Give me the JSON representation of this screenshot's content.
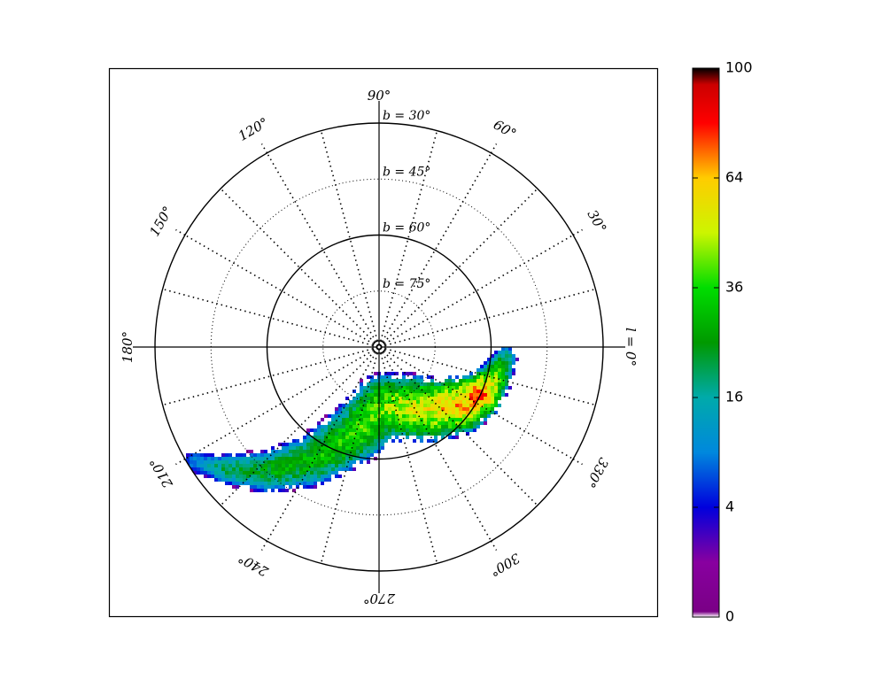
{
  "chart_data": {
    "type": "heatmap",
    "projection": "polar (galactic, north-pole centred)",
    "title": "",
    "longitude_ticks": [
      "90°",
      "60°",
      "30°",
      "l = 0°",
      "330°",
      "300°",
      "270°",
      "240°",
      "210°",
      "180°",
      "150°",
      "120°"
    ],
    "longitude_values": [
      90,
      60,
      30,
      0,
      330,
      300,
      270,
      240,
      210,
      180,
      150,
      120
    ],
    "latitude_labels": [
      "b = 30°",
      "b = 45°",
      "b = 60°",
      "b = 75°"
    ],
    "latitude_values": [
      30,
      45,
      60,
      75
    ],
    "latitude_solid": [
      30,
      60
    ],
    "latitude_dotted": [
      45,
      75
    ],
    "meridian_step_deg": 15,
    "colorbar": {
      "ticks": [
        "0",
        "4",
        "16",
        "36",
        "64",
        "100"
      ],
      "tick_values": [
        0,
        4,
        16,
        36,
        64,
        100
      ],
      "range": [
        0,
        100
      ],
      "scale": "sqrt",
      "colormap": "nipy_spectral"
    },
    "density_stream": {
      "description_free": true,
      "peak_region": {
        "l_range": [
          300,
          345
        ],
        "b_range": [
          55,
          70
        ],
        "approx_value": 80
      },
      "extent": {
        "l_range": [
          195,
          355
        ],
        "b_range": [
          30,
          80
        ]
      },
      "ridge": [
        {
          "l": 355,
          "b": 56,
          "v": 22
        },
        {
          "l": 345,
          "b": 58,
          "v": 45
        },
        {
          "l": 335,
          "b": 60,
          "v": 75
        },
        {
          "l": 325,
          "b": 63,
          "v": 65
        },
        {
          "l": 310,
          "b": 68,
          "v": 55
        },
        {
          "l": 295,
          "b": 72,
          "v": 50
        },
        {
          "l": 275,
          "b": 74,
          "v": 42
        },
        {
          "l": 255,
          "b": 66,
          "v": 36
        },
        {
          "l": 240,
          "b": 55,
          "v": 30
        },
        {
          "l": 228,
          "b": 45,
          "v": 26
        },
        {
          "l": 218,
          "b": 37,
          "v": 20
        },
        {
          "l": 212,
          "b": 32,
          "v": 10
        }
      ]
    },
    "colors": {
      "frame": "#000000",
      "grid": "#000000"
    }
  }
}
